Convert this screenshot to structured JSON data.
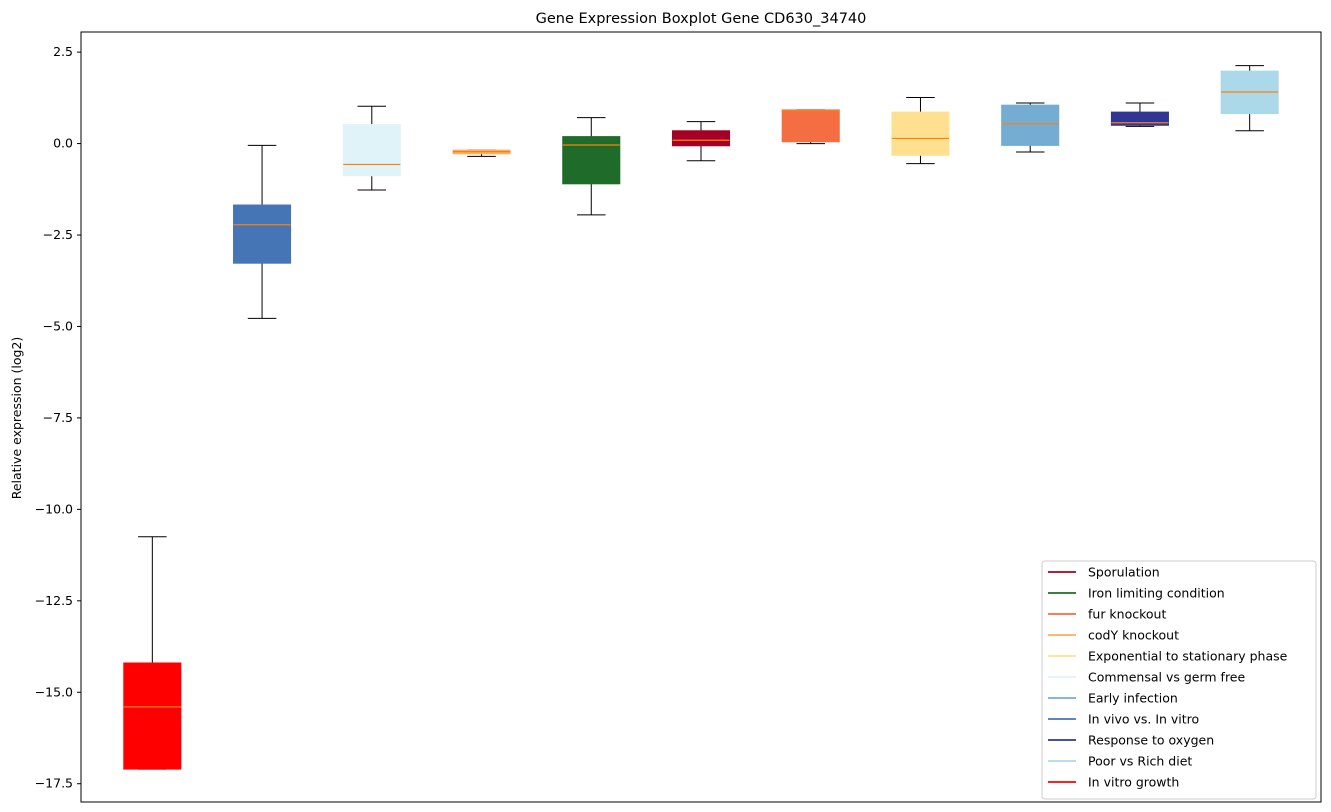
{
  "chart_data": {
    "type": "boxplot",
    "title": "Gene Expression Boxplot Gene CD630_34740",
    "xlabel": "",
    "ylabel": "Relative expression (log2)",
    "ylim": [
      -18.0,
      3.05
    ],
    "yticks": [
      2.5,
      0.0,
      -2.5,
      -5.0,
      -7.5,
      -10.0,
      -12.5,
      -15.0,
      -17.5
    ],
    "ytick_labels": [
      "2.5",
      "0.0",
      "−2.5",
      "−5.0",
      "−7.5",
      "−10.0",
      "−12.5",
      "−15.0",
      "−17.5"
    ],
    "grid": false,
    "legend_position": "lower-right",
    "median_color": "#ff7f0e",
    "boxes": [
      {
        "name": "In vitro growth",
        "color": "#ff0000",
        "whisker_low": -17.1,
        "q1": -17.1,
        "median": -15.4,
        "q3": -14.2,
        "whisker_high": -10.75
      },
      {
        "name": "In vivo vs. In vitro",
        "color": "#4575b4",
        "whisker_low": -4.78,
        "q1": -3.27,
        "median": -2.22,
        "q3": -1.68,
        "whisker_high": -0.05
      },
      {
        "name": "Commensal vs germ free",
        "color": "#e0f3f8",
        "whisker_low": -1.27,
        "q1": -0.88,
        "median": -0.57,
        "q3": 0.52,
        "whisker_high": 1.02
      },
      {
        "name": "codY knockout",
        "color": "#fdae61",
        "whisker_low": -0.35,
        "q1": -0.28,
        "median": -0.22,
        "q3": -0.18,
        "whisker_high": -0.18
      },
      {
        "name": "Iron limiting condition",
        "color": "#1f6b2a",
        "whisker_low": -1.95,
        "q1": -1.1,
        "median": -0.04,
        "q3": 0.19,
        "whisker_high": 0.71
      },
      {
        "name": "Sporulation",
        "color": "#a50026",
        "whisker_low": -0.47,
        "q1": -0.06,
        "median": 0.09,
        "q3": 0.35,
        "whisker_high": 0.6
      },
      {
        "name": "fur knockout",
        "color": "#f46d43",
        "whisker_low": 0.0,
        "q1": 0.05,
        "median": 0.9,
        "q3": 0.92,
        "whisker_high": 0.92
      },
      {
        "name": "Exponential to stationary phase",
        "color": "#fee090",
        "whisker_low": -0.55,
        "q1": -0.32,
        "median": 0.14,
        "q3": 0.86,
        "whisker_high": 1.26
      },
      {
        "name": "Early infection",
        "color": "#74add1",
        "whisker_low": -0.23,
        "q1": -0.05,
        "median": 0.54,
        "q3": 1.05,
        "whisker_high": 1.11
      },
      {
        "name": "Response to oxygen",
        "color": "#313695",
        "whisker_low": 0.47,
        "q1": 0.5,
        "median": 0.57,
        "q3": 0.86,
        "whisker_high": 1.11
      },
      {
        "name": "Poor vs Rich diet",
        "color": "#abd9e9",
        "whisker_low": 0.35,
        "q1": 0.82,
        "median": 1.41,
        "q3": 1.98,
        "whisker_high": 2.13
      }
    ],
    "legend": [
      {
        "label": "Sporulation",
        "color": "#a50026"
      },
      {
        "label": "Iron limiting condition",
        "color": "#1f6b2a"
      },
      {
        "label": "fur knockout",
        "color": "#f46d43"
      },
      {
        "label": "codY knockout",
        "color": "#fdae61"
      },
      {
        "label": "Exponential to stationary phase",
        "color": "#fee090"
      },
      {
        "label": "Commensal vs germ free",
        "color": "#e0f3f8"
      },
      {
        "label": "Early infection",
        "color": "#74add1"
      },
      {
        "label": "In vivo vs. In vitro",
        "color": "#4575b4"
      },
      {
        "label": "Response to oxygen",
        "color": "#313695"
      },
      {
        "label": "Poor vs Rich diet",
        "color": "#abd9e9"
      },
      {
        "label": "In vitro growth",
        "color": "#ff0000"
      }
    ]
  }
}
